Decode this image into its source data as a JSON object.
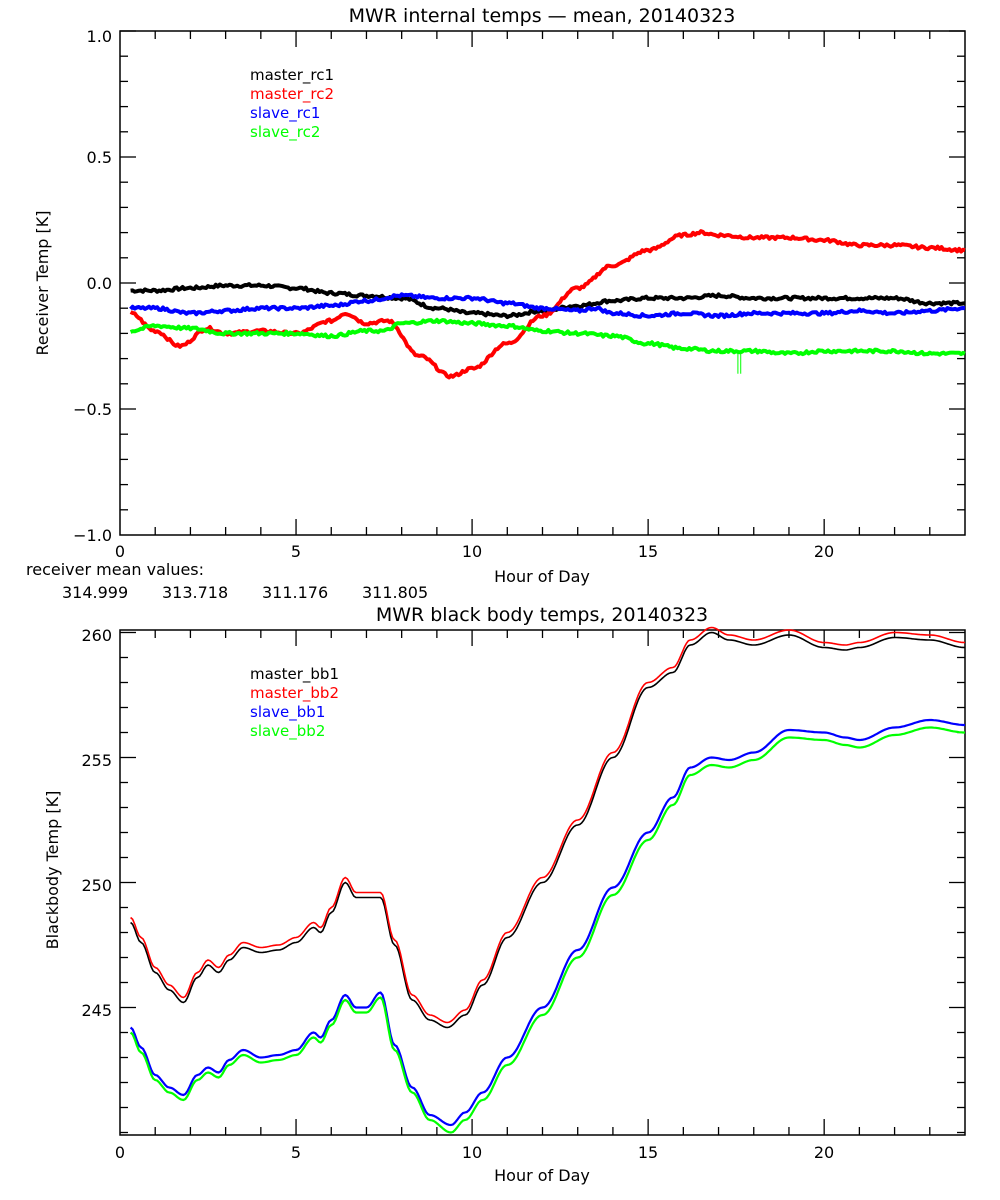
{
  "chart_data": [
    {
      "type": "line",
      "title": "MWR internal temps — mean, 20140323",
      "xlabel": "Hour of Day",
      "ylabel": "Receiver Temp [K]",
      "xlim": [
        0,
        24
      ],
      "ylim": [
        -1.0,
        1.0
      ],
      "xticks": [
        0,
        5,
        10,
        15,
        20
      ],
      "xtick_labels": [
        "0",
        "5",
        "10",
        "15",
        "20"
      ],
      "yticks": [
        -1.0,
        -0.5,
        0.0,
        0.5,
        1.0
      ],
      "ytick_labels": [
        "−1.0",
        "−0.5",
        "0.0",
        "0.5",
        "1.0"
      ],
      "grid": false,
      "legend_position": "top-left",
      "series": [
        {
          "name": "master_rc1",
          "color": "#000000",
          "x": [
            0.3,
            1,
            2,
            3,
            4,
            5,
            6,
            7,
            8,
            9,
            10,
            11,
            12,
            13,
            14,
            15,
            16,
            17,
            18,
            19,
            20,
            21,
            22,
            23,
            24
          ],
          "y": [
            -0.03,
            -0.03,
            -0.02,
            -0.01,
            -0.01,
            -0.02,
            -0.04,
            -0.05,
            -0.06,
            -0.1,
            -0.12,
            -0.13,
            -0.11,
            -0.09,
            -0.07,
            -0.06,
            -0.06,
            -0.05,
            -0.06,
            -0.06,
            -0.06,
            -0.06,
            -0.06,
            -0.08,
            -0.08
          ]
        },
        {
          "name": "master_rc2",
          "color": "#ff0000",
          "x": [
            0.3,
            1,
            1.7,
            2.5,
            3,
            4,
            5,
            6,
            6.4,
            7,
            7.6,
            8.5,
            9.4,
            10,
            11,
            12,
            13,
            14,
            15,
            16,
            16.5,
            17,
            18,
            19,
            20,
            21,
            22,
            23,
            24
          ],
          "y": [
            -0.12,
            -0.19,
            -0.25,
            -0.18,
            -0.2,
            -0.19,
            -0.2,
            -0.15,
            -0.12,
            -0.16,
            -0.15,
            -0.29,
            -0.37,
            -0.34,
            -0.24,
            -0.13,
            -0.02,
            0.07,
            0.13,
            0.19,
            0.2,
            0.19,
            0.18,
            0.18,
            0.17,
            0.15,
            0.15,
            0.14,
            0.13
          ]
        },
        {
          "name": "slave_rc1",
          "color": "#0000ff",
          "x": [
            0.3,
            1,
            2,
            3,
            4,
            5,
            6,
            7,
            8,
            9,
            10,
            11,
            12,
            13,
            13.5,
            14,
            15,
            16,
            17,
            18,
            19,
            20,
            21,
            22,
            23,
            24
          ],
          "y": [
            -0.1,
            -0.1,
            -0.12,
            -0.11,
            -0.1,
            -0.1,
            -0.09,
            -0.07,
            -0.05,
            -0.06,
            -0.06,
            -0.08,
            -0.1,
            -0.11,
            -0.1,
            -0.12,
            -0.13,
            -0.12,
            -0.13,
            -0.12,
            -0.12,
            -0.12,
            -0.11,
            -0.12,
            -0.11,
            -0.1
          ]
        },
        {
          "name": "slave_rc2",
          "color": "#00ff00",
          "x": [
            0.3,
            1,
            2,
            3,
            4,
            5,
            6,
            7,
            7.5,
            8,
            9,
            10,
            11,
            12,
            13,
            14,
            15,
            16,
            17,
            17.5,
            18,
            19,
            20,
            21,
            22,
            23,
            24
          ],
          "y": [
            -0.19,
            -0.17,
            -0.18,
            -0.2,
            -0.2,
            -0.2,
            -0.21,
            -0.19,
            -0.19,
            -0.16,
            -0.15,
            -0.16,
            -0.17,
            -0.19,
            -0.2,
            -0.21,
            -0.24,
            -0.26,
            -0.27,
            -0.27,
            -0.27,
            -0.28,
            -0.27,
            -0.27,
            -0.27,
            -0.28,
            -0.28
          ]
        }
      ],
      "annotations": {
        "mean_label": "receiver mean values:",
        "mean_values": [
          {
            "text": "314.999",
            "color": "#000000"
          },
          {
            "text": "313.718",
            "color": "#ff0000"
          },
          {
            "text": "311.176",
            "color": "#0000ff"
          },
          {
            "text": "311.805",
            "color": "#00ff00"
          }
        ]
      }
    },
    {
      "type": "line",
      "title": "MWR black body temps, 20140323",
      "xlabel": "Hour of Day",
      "ylabel": "Blackbody Temp [K]",
      "xlim": [
        0,
        24
      ],
      "ylim": [
        239.9,
        260.1
      ],
      "xticks": [
        0,
        5,
        10,
        15,
        20
      ],
      "xtick_labels": [
        "0",
        "5",
        "10",
        "15",
        "20"
      ],
      "yticks": [
        245,
        250,
        255,
        260
      ],
      "ytick_labels": [
        "245",
        "250",
        "255",
        "260"
      ],
      "grid": false,
      "legend_position": "top-left",
      "series": [
        {
          "name": "master_bb1",
          "color": "#000000",
          "x": [
            0.3,
            0.6,
            1,
            1.4,
            1.8,
            2.2,
            2.5,
            2.8,
            3.1,
            3.5,
            4,
            4.5,
            5,
            5.5,
            5.7,
            6,
            6.4,
            6.7,
            7,
            7.4,
            7.8,
            8.3,
            8.8,
            9.3,
            9.8,
            10.3,
            11,
            12,
            13,
            14,
            15,
            15.7,
            16.2,
            16.8,
            17.3,
            18,
            19,
            20,
            20.6,
            21,
            22,
            23,
            24
          ],
          "y": [
            248.4,
            247.6,
            246.4,
            245.7,
            245.2,
            246.2,
            246.7,
            246.4,
            246.9,
            247.4,
            247.2,
            247.3,
            247.6,
            248.2,
            248.0,
            248.8,
            250.0,
            249.4,
            249.4,
            249.4,
            247.5,
            245.3,
            244.5,
            244.2,
            244.7,
            245.9,
            247.8,
            250.0,
            252.3,
            255.0,
            257.8,
            258.4,
            259.5,
            260.0,
            259.7,
            259.5,
            259.9,
            259.4,
            259.3,
            259.4,
            259.8,
            259.7,
            259.4
          ]
        },
        {
          "name": "master_bb2",
          "color": "#ff0000",
          "x": [
            0.3,
            0.6,
            1,
            1.4,
            1.8,
            2.2,
            2.5,
            2.8,
            3.1,
            3.5,
            4,
            4.5,
            5,
            5.5,
            5.7,
            6,
            6.4,
            6.7,
            7,
            7.4,
            7.8,
            8.3,
            8.8,
            9.3,
            9.8,
            10.3,
            11,
            12,
            13,
            14,
            15,
            15.7,
            16.2,
            16.8,
            17.3,
            18,
            19,
            20,
            20.6,
            21,
            22,
            23,
            24
          ],
          "y": [
            248.6,
            247.8,
            246.6,
            245.9,
            245.4,
            246.4,
            246.9,
            246.6,
            247.1,
            247.6,
            247.4,
            247.5,
            247.8,
            248.4,
            248.2,
            249.0,
            250.2,
            249.6,
            249.6,
            249.6,
            247.7,
            245.5,
            244.7,
            244.4,
            244.9,
            246.1,
            248.0,
            250.2,
            252.5,
            255.2,
            258.0,
            258.6,
            259.7,
            260.2,
            259.9,
            259.7,
            260.1,
            259.6,
            259.5,
            259.6,
            260.0,
            259.9,
            259.6
          ]
        },
        {
          "name": "slave_bb1",
          "color": "#0000ff",
          "x": [
            0.3,
            0.6,
            1,
            1.4,
            1.8,
            2.2,
            2.5,
            2.8,
            3.1,
            3.5,
            4,
            4.5,
            5,
            5.5,
            5.7,
            6,
            6.4,
            6.7,
            7,
            7.4,
            7.8,
            8.3,
            8.8,
            9.4,
            9.8,
            10.3,
            11,
            12,
            13,
            14,
            15,
            15.7,
            16.2,
            16.8,
            17.3,
            18,
            19,
            20,
            20.6,
            21,
            22,
            23,
            24
          ],
          "y": [
            244.2,
            243.4,
            242.3,
            241.8,
            241.5,
            242.3,
            242.6,
            242.4,
            242.9,
            243.3,
            243.0,
            243.1,
            243.3,
            244.0,
            243.8,
            244.5,
            245.5,
            245.0,
            245.0,
            245.6,
            243.5,
            241.8,
            240.7,
            240.3,
            240.8,
            241.6,
            243.0,
            245.0,
            247.3,
            249.8,
            252.0,
            253.4,
            254.6,
            255.0,
            254.9,
            255.2,
            256.1,
            256.0,
            255.8,
            255.7,
            256.2,
            256.5,
            256.3
          ]
        },
        {
          "name": "slave_bb2",
          "color": "#00ff00",
          "x": [
            0.3,
            0.6,
            1,
            1.4,
            1.8,
            2.2,
            2.5,
            2.8,
            3.1,
            3.5,
            4,
            4.5,
            5,
            5.5,
            5.7,
            6,
            6.4,
            6.7,
            7,
            7.4,
            7.8,
            8.3,
            8.8,
            9.4,
            9.8,
            10.3,
            11,
            12,
            13,
            14,
            15,
            15.7,
            16.2,
            16.8,
            17.3,
            18,
            19,
            20,
            20.6,
            21,
            22,
            23,
            24
          ],
          "y": [
            244.0,
            243.2,
            242.1,
            241.6,
            241.3,
            242.1,
            242.4,
            242.2,
            242.7,
            243.1,
            242.8,
            242.9,
            243.1,
            243.8,
            243.6,
            244.3,
            245.3,
            244.8,
            244.8,
            245.4,
            243.3,
            241.6,
            240.5,
            240.0,
            240.5,
            241.3,
            242.7,
            244.7,
            247.0,
            249.5,
            251.7,
            253.1,
            254.3,
            254.7,
            254.6,
            254.9,
            255.8,
            255.7,
            255.5,
            255.4,
            255.9,
            256.2,
            256.0
          ]
        }
      ]
    }
  ]
}
